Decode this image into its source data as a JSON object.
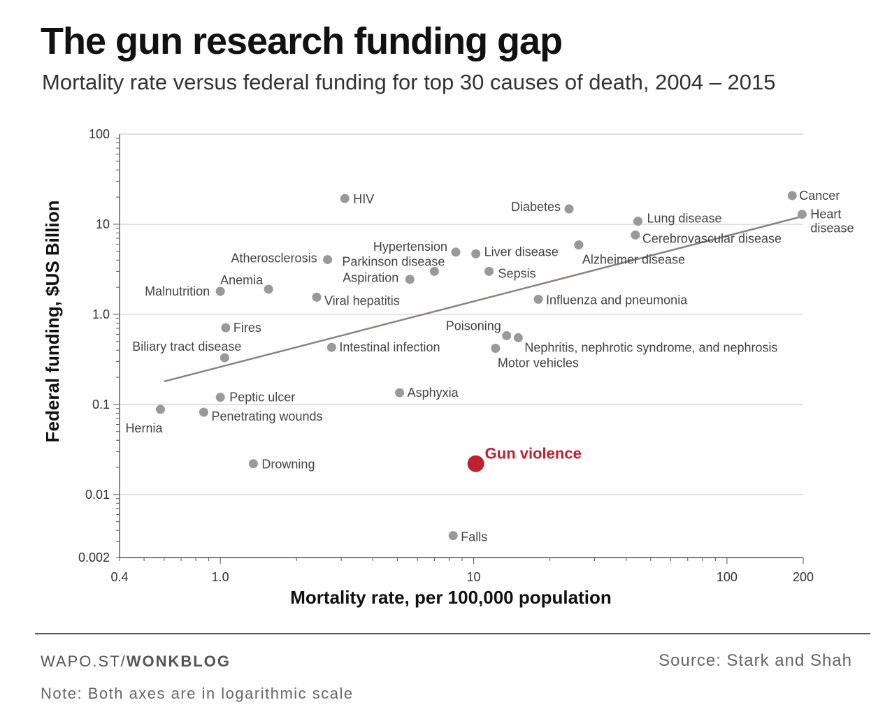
{
  "header": {
    "title": "The gun research funding gap",
    "subtitle": "Mortality rate versus federal funding for top 30 causes of death, 2004 – 2015"
  },
  "footer": {
    "credit_prefix": "WAPO.ST/",
    "credit_brand": "WONKBLOG",
    "source": "Source: Stark and Shah",
    "note": "Note: Both axes are in logarithmic scale"
  },
  "colors": {
    "point": "#999999",
    "highlight": "#c0202f",
    "trend": "#8a8378",
    "grid": "#d0d0d0",
    "axis": "#555555"
  },
  "chart_data": {
    "type": "scatter",
    "xscale": "log",
    "yscale": "log",
    "xlabel": "Mortality rate, per 100,000 population",
    "ylabel": "Federal funding, $US Billion",
    "xlim": [
      0.4,
      200
    ],
    "ylim": [
      0.002,
      100
    ],
    "x_ticks": [
      {
        "value": 0.4,
        "label": "0.4"
      },
      {
        "value": 1,
        "label": "1.0"
      },
      {
        "value": 10,
        "label": "10"
      },
      {
        "value": 100,
        "label": "100"
      },
      {
        "value": 200,
        "label": "200"
      }
    ],
    "y_ticks": [
      {
        "value": 100,
        "label": "100"
      },
      {
        "value": 10,
        "label": "10"
      },
      {
        "value": 1,
        "label": "1.0"
      },
      {
        "value": 0.1,
        "label": "0.1"
      },
      {
        "value": 0.01,
        "label": "0.01"
      },
      {
        "value": 0.002,
        "label": "0.002"
      }
    ],
    "trendline": {
      "x": [
        0.6,
        200
      ],
      "y": [
        0.18,
        12.3
      ]
    },
    "points": [
      {
        "name": "Cancer",
        "x": 181,
        "y": 20.8
      },
      {
        "name": "Heart disease",
        "x": 198,
        "y": 12.9
      },
      {
        "name": "Lung disease",
        "x": 44.5,
        "y": 10.8
      },
      {
        "name": "Cerebrovascular disease",
        "x": 43.5,
        "y": 7.6
      },
      {
        "name": "Alzheimer disease",
        "x": 26,
        "y": 5.9
      },
      {
        "name": "Diabetes",
        "x": 23.8,
        "y": 14.8
      },
      {
        "name": "HIV",
        "x": 3.1,
        "y": 19.3
      },
      {
        "name": "Hypertension",
        "x": 8.5,
        "y": 4.9
      },
      {
        "name": "Liver disease",
        "x": 10.2,
        "y": 4.7
      },
      {
        "name": "Parkinson disease",
        "x": 7,
        "y": 3
      },
      {
        "name": "Sepsis",
        "x": 11.5,
        "y": 3
      },
      {
        "name": "Aspiration",
        "x": 5.6,
        "y": 2.45
      },
      {
        "name": "Atherosclerosis",
        "x": 2.65,
        "y": 4.05
      },
      {
        "name": "Anemia",
        "x": 1.55,
        "y": 1.9
      },
      {
        "name": "Malnutrition",
        "x": 1,
        "y": 1.8
      },
      {
        "name": "Viral hepatitis",
        "x": 2.4,
        "y": 1.55
      },
      {
        "name": "Influenza and pneumonia",
        "x": 18,
        "y": 1.47
      },
      {
        "name": "Fires",
        "x": 1.05,
        "y": 0.71
      },
      {
        "name": "Poisoning",
        "x": 13.5,
        "y": 0.58
      },
      {
        "name": "Nephritis, nephrotic syndrome, and nephrosis",
        "x": 15,
        "y": 0.55
      },
      {
        "name": "Motor vehicles",
        "x": 12.2,
        "y": 0.42
      },
      {
        "name": "Intestinal infection",
        "x": 2.75,
        "y": 0.43
      },
      {
        "name": "Biliary tract disease",
        "x": 1.04,
        "y": 0.33
      },
      {
        "name": "Asphyxia",
        "x": 5.1,
        "y": 0.135
      },
      {
        "name": "Peptic ulcer",
        "x": 1,
        "y": 0.12
      },
      {
        "name": "Hernia",
        "x": 0.58,
        "y": 0.088
      },
      {
        "name": "Penetrating wounds",
        "x": 0.86,
        "y": 0.082
      },
      {
        "name": "Drowning",
        "x": 1.35,
        "y": 0.022
      },
      {
        "name": "Gun violence",
        "x": 10.2,
        "y": 0.022,
        "highlight": true
      },
      {
        "name": "Falls",
        "x": 8.3,
        "y": 0.0035
      }
    ]
  }
}
